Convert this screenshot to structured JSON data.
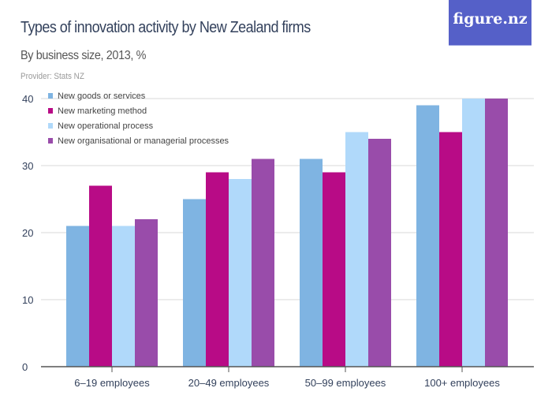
{
  "title": "Types of innovation activity by New Zealand firms",
  "subtitle": "By business size, 2013, %",
  "provider": "Provider: Stats NZ",
  "logo": "figure.nz",
  "chart_data": {
    "type": "bar",
    "title": "Types of innovation activity by New Zealand firms",
    "subtitle": "By business size, 2013, %",
    "categories": [
      "6–19 employees",
      "20–49 employees",
      "50–99 employees",
      "100+ employees"
    ],
    "series": [
      {
        "name": "New goods or services",
        "color": "#7fb4e2",
        "values": [
          21,
          25,
          31,
          39
        ]
      },
      {
        "name": "New marketing method",
        "color": "#b80b86",
        "values": [
          27,
          29,
          29,
          35
        ]
      },
      {
        "name": "New operational process",
        "color": "#b0d9fa",
        "values": [
          21,
          28,
          35,
          40
        ]
      },
      {
        "name": "New organisational or managerial processes",
        "color": "#994caa",
        "values": [
          22,
          31,
          34,
          40
        ]
      }
    ],
    "yticks": [
      0,
      10,
      20,
      30,
      40
    ],
    "ylim": [
      0,
      40
    ],
    "grid": true,
    "legend": "top-left"
  }
}
